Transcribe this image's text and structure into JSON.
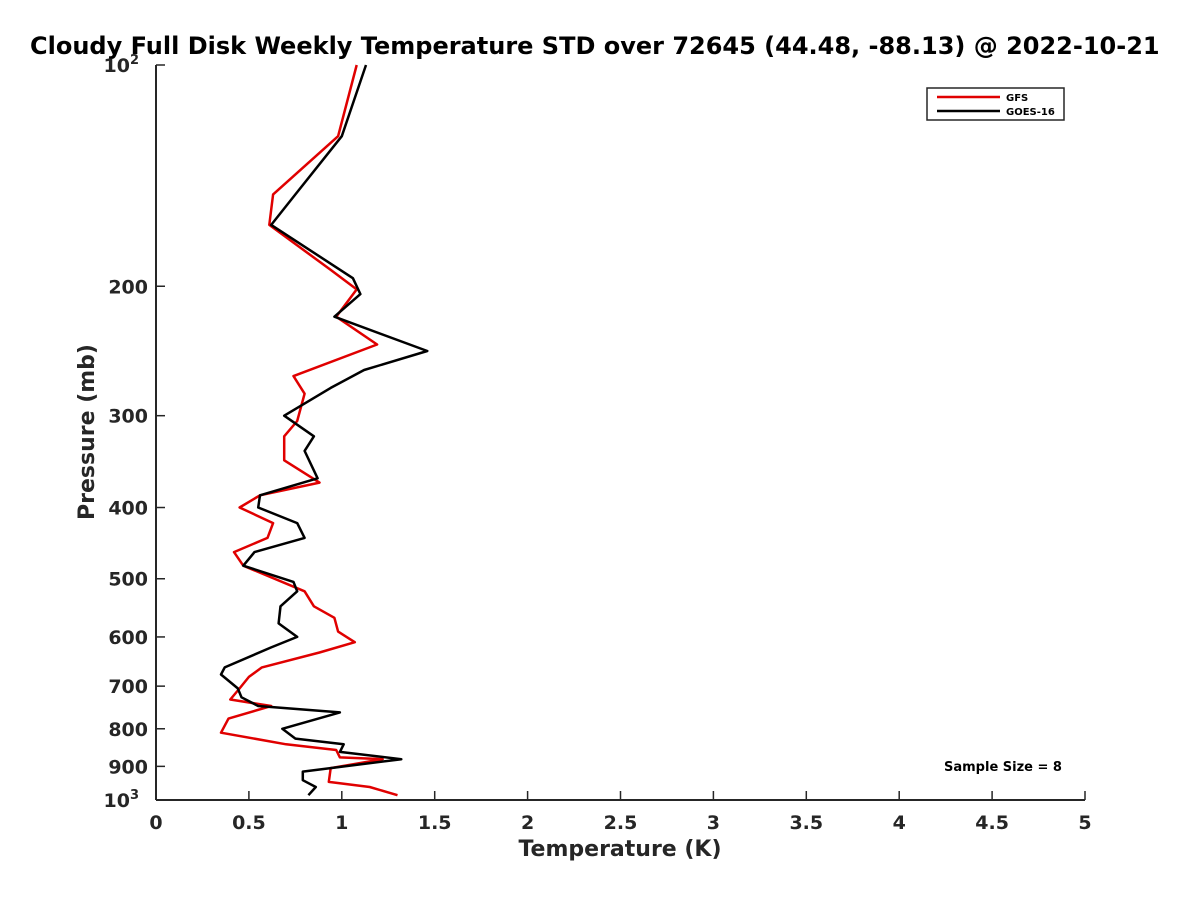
{
  "chart_data": {
    "type": "line",
    "title": "Cloudy Full Disk Weekly Temperature STD over 72645 (44.48, -88.13) @ 2022-10-21",
    "xlabel": "Temperature (K)",
    "ylabel": "Pressure (mb)",
    "xlim": [
      0,
      5
    ],
    "ylim": [
      100,
      1000
    ],
    "y_scale": "log",
    "y_reversed": true,
    "x_ticks": [
      "0",
      "0.5",
      "1",
      "1.5",
      "2",
      "2.5",
      "3",
      "3.5",
      "4",
      "4.5",
      "5"
    ],
    "y_ticks": [
      {
        "value": 100,
        "label": "10",
        "sup": "2"
      },
      {
        "value": 200,
        "label": "200"
      },
      {
        "value": 300,
        "label": "300"
      },
      {
        "value": 400,
        "label": "400"
      },
      {
        "value": 500,
        "label": "500"
      },
      {
        "value": 600,
        "label": "600"
      },
      {
        "value": 700,
        "label": "700"
      },
      {
        "value": 800,
        "label": "800"
      },
      {
        "value": 900,
        "label": "900"
      },
      {
        "value": 1000,
        "label": "10",
        "sup": "3"
      }
    ],
    "grid": false,
    "legend_position": "top-right",
    "annotation": "Sample Size = 8",
    "series": [
      {
        "name": "GFS",
        "color": "#e00000",
        "points": [
          [
            1.08,
            100
          ],
          [
            0.98,
            125
          ],
          [
            0.63,
            150
          ],
          [
            0.61,
            165
          ],
          [
            0.94,
            190
          ],
          [
            1.08,
            202
          ],
          [
            0.97,
            220
          ],
          [
            1.19,
            240
          ],
          [
            0.74,
            265
          ],
          [
            0.8,
            280
          ],
          [
            0.76,
            305
          ],
          [
            0.69,
            320
          ],
          [
            0.69,
            345
          ],
          [
            0.88,
            370
          ],
          [
            0.56,
            385
          ],
          [
            0.45,
            400
          ],
          [
            0.63,
            420
          ],
          [
            0.6,
            440
          ],
          [
            0.42,
            460
          ],
          [
            0.47,
            480
          ],
          [
            0.8,
            520
          ],
          [
            0.85,
            545
          ],
          [
            0.96,
            565
          ],
          [
            0.98,
            590
          ],
          [
            1.07,
            610
          ],
          [
            0.88,
            630
          ],
          [
            0.57,
            660
          ],
          [
            0.5,
            680
          ],
          [
            0.45,
            705
          ],
          [
            0.4,
            730
          ],
          [
            0.62,
            745
          ],
          [
            0.39,
            775
          ],
          [
            0.35,
            810
          ],
          [
            0.7,
            840
          ],
          [
            0.97,
            855
          ],
          [
            0.99,
            875
          ],
          [
            1.22,
            880
          ],
          [
            0.94,
            905
          ],
          [
            0.93,
            945
          ],
          [
            1.15,
            960
          ],
          [
            1.3,
            985
          ]
        ]
      },
      {
        "name": "GOES-16",
        "color": "#000000",
        "points": [
          [
            1.13,
            100
          ],
          [
            1.0,
            125
          ],
          [
            0.75,
            150
          ],
          [
            0.62,
            165
          ],
          [
            1.06,
            195
          ],
          [
            1.1,
            205
          ],
          [
            0.96,
            220
          ],
          [
            1.46,
            245
          ],
          [
            1.12,
            260
          ],
          [
            0.94,
            275
          ],
          [
            0.69,
            300
          ],
          [
            0.85,
            320
          ],
          [
            0.8,
            335
          ],
          [
            0.87,
            365
          ],
          [
            0.56,
            385
          ],
          [
            0.55,
            400
          ],
          [
            0.76,
            420
          ],
          [
            0.8,
            440
          ],
          [
            0.53,
            460
          ],
          [
            0.47,
            480
          ],
          [
            0.74,
            505
          ],
          [
            0.76,
            520
          ],
          [
            0.67,
            545
          ],
          [
            0.66,
            575
          ],
          [
            0.76,
            600
          ],
          [
            0.62,
            620
          ],
          [
            0.37,
            660
          ],
          [
            0.35,
            675
          ],
          [
            0.44,
            705
          ],
          [
            0.46,
            725
          ],
          [
            0.55,
            745
          ],
          [
            0.99,
            760
          ],
          [
            0.68,
            800
          ],
          [
            0.75,
            825
          ],
          [
            1.01,
            840
          ],
          [
            0.99,
            860
          ],
          [
            1.32,
            880
          ],
          [
            0.79,
            915
          ],
          [
            0.79,
            940
          ],
          [
            0.86,
            960
          ],
          [
            0.82,
            985
          ]
        ]
      }
    ]
  }
}
